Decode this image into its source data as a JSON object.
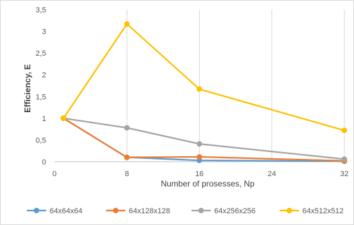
{
  "chart_data": {
    "type": "line",
    "xlabel": "Number of prosesses, Np",
    "ylabel": "Efficiency, E",
    "xlim": [
      0,
      32
    ],
    "ylim": [
      0,
      3.5
    ],
    "x_ticks": [
      "0",
      "8",
      "16",
      "24",
      "32"
    ],
    "y_ticks": [
      "0",
      "0,5",
      "1",
      "1,5",
      "2",
      "2,5",
      "3",
      "3,5"
    ],
    "grid": "vertical",
    "legend_position": "bottom",
    "series": [
      {
        "name": "64x64x64",
        "color": "#5b9bd5",
        "x": [
          1,
          8,
          16,
          32
        ],
        "y": [
          1.0,
          0.1,
          0.03,
          0.01
        ]
      },
      {
        "name": "64x128x128",
        "color": "#ed7d31",
        "x": [
          1,
          8,
          16,
          32
        ],
        "y": [
          1.0,
          0.1,
          0.11,
          0.02
        ]
      },
      {
        "name": "64x256x256",
        "color": "#a5a5a5",
        "x": [
          1,
          8,
          16,
          32
        ],
        "y": [
          1.0,
          0.78,
          0.41,
          0.06
        ]
      },
      {
        "name": "64x512x512",
        "color": "#ffc000",
        "x": [
          1,
          8,
          16,
          32
        ],
        "y": [
          1.0,
          3.17,
          1.67,
          0.72
        ]
      }
    ]
  }
}
